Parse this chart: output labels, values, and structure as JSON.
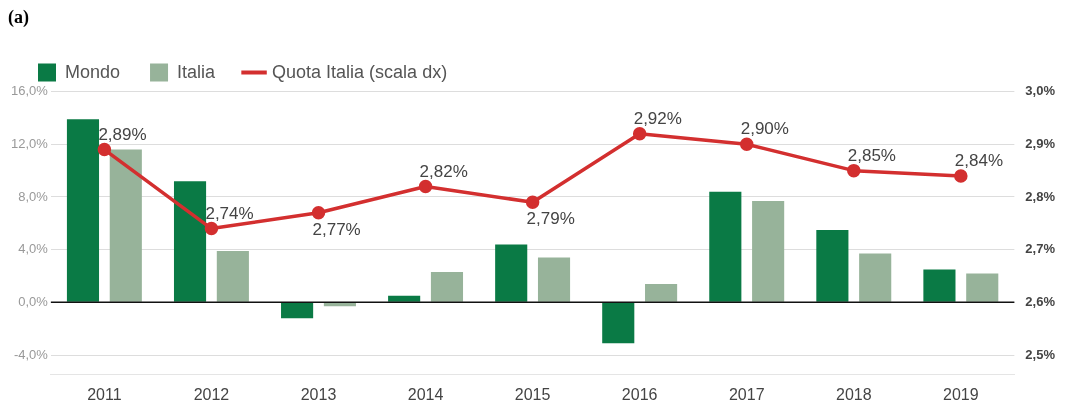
{
  "chart_data": {
    "type": "bar",
    "title": "(a)",
    "categories": [
      "2011",
      "2012",
      "2013",
      "2014",
      "2015",
      "2016",
      "2017",
      "2018",
      "2019"
    ],
    "series": [
      {
        "name": "Mondo",
        "color": "#0a7a45",
        "values": [
          13.9,
          9.2,
          -1.2,
          0.5,
          4.4,
          -3.1,
          8.4,
          5.5,
          2.5
        ]
      },
      {
        "name": "Italia",
        "color": "#97b39a",
        "values": [
          11.6,
          3.9,
          -0.3,
          2.3,
          3.4,
          1.4,
          7.7,
          3.7,
          2.2
        ]
      },
      {
        "name": "Quota Italia (scala dx)",
        "type": "line",
        "axis": "y2",
        "color": "#d32f2f",
        "marker": "circle",
        "values": [
          2.89,
          2.74,
          2.77,
          2.82,
          2.79,
          2.92,
          2.9,
          2.85,
          2.84
        ],
        "value_labels": [
          "2,89%",
          "2,74%",
          "2,77%",
          "2,82%",
          "2,79%",
          "2,92%",
          "2,90%",
          "2,85%",
          "2,84%"
        ]
      }
    ],
    "ylim": [
      -5.5,
      16
    ],
    "yticks": [
      {
        "value": -4,
        "label": "-4,0%"
      },
      {
        "value": 0,
        "label": "0,0%"
      },
      {
        "value": 4,
        "label": "4,0%"
      },
      {
        "value": 8,
        "label": "8,0%"
      },
      {
        "value": 12,
        "label": "12,0%"
      },
      {
        "value": 16,
        "label": "16,0%"
      }
    ],
    "y2lim": [
      2.4625,
      3.0
    ],
    "y2ticks": [
      {
        "value": 2.5,
        "label": "2,5%"
      },
      {
        "value": 2.6,
        "label": "2,6%"
      },
      {
        "value": 2.7,
        "label": "2,7%"
      },
      {
        "value": 2.8,
        "label": "2,8%"
      },
      {
        "value": 2.9,
        "label": "2,9%"
      },
      {
        "value": 3.0,
        "label": "3,0%"
      }
    ],
    "grid": "y",
    "legend": "top left"
  }
}
